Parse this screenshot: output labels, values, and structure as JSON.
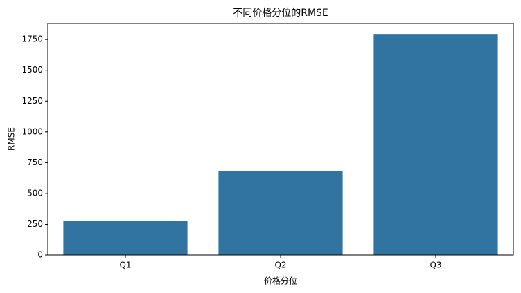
{
  "chart_data": {
    "type": "bar",
    "title": "不同价格分位的RMSE",
    "x_label": "价格分位",
    "y_label": "RMSE",
    "categories": [
      "Q1",
      "Q2",
      "Q3"
    ],
    "values": [
      275,
      684,
      1795
    ],
    "color": "#3274a1",
    "ylim": [
      0,
      1880
    ],
    "yticks": [
      0,
      250,
      500,
      750,
      1000,
      1250,
      1500,
      1750
    ]
  }
}
